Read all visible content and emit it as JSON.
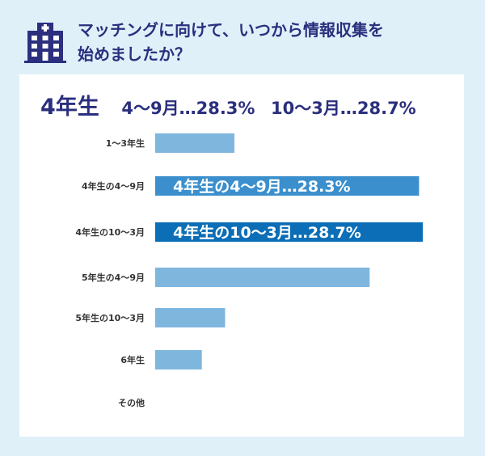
{
  "header": {
    "icon": "hospital-building-icon",
    "title_line1": "マッチングに向けて、いつから情報収集を",
    "title_line2": "始めましたか？"
  },
  "summary": {
    "grade": "4年生",
    "period1": "4～9月…28.3%",
    "period2": "10～3月…28.7%"
  },
  "colors": {
    "title": "#2b2f7e",
    "bar": "#7fb6de",
    "highlight1": "#3b8fcd",
    "highlight2": "#0b6eb6",
    "background": "#dff0f9"
  },
  "chart_data": {
    "type": "bar",
    "orientation": "horizontal",
    "categories": [
      "1～3年生",
      "4年生の4～9月",
      "4年生の10～3月",
      "5年生の4～9月",
      "5年生の10～3月",
      "6年生",
      "その他"
    ],
    "values": [
      8.5,
      28.3,
      28.7,
      23.0,
      7.5,
      5.0,
      0
    ],
    "unit": "%",
    "highlighted": [
      1,
      2
    ],
    "callouts": [
      "",
      "4年生の4～9月…28.3%",
      "4年生の10～3月…28.7%",
      "",
      "",
      "",
      ""
    ],
    "xlim": [
      0,
      30
    ]
  }
}
